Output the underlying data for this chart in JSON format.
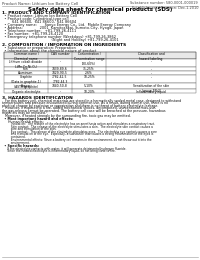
{
  "bg_color": "#ffffff",
  "header_left": "Product Name: Lithium Ion Battery Cell",
  "header_right": "Substance number: 580-0001-000019\nEstablishment / Revision: Dec.1.2010",
  "title": "Safety data sheet for chemical products (SDS)",
  "section1_title": "1. PRODUCT AND COMPANY IDENTIFICATION",
  "section1_lines": [
    "  • Product name: Lithium Ion Battery Cell",
    "  • Product code: Cylindrical-type cell",
    "         641 86600,  641 86600,  641 86604",
    "  • Company name:       Sanyo Energy Co., Ltd.  Mobile Energy Company",
    "  • Address:               2001  Kamitosakai, Sumoto-City, Hyogo, Japan",
    "  • Telephone number:   +81-799-26-4111",
    "  • Fax number:  +81-799-26-4120",
    "  • Emergency telephone number (Weekdays) +81-799-26-3862",
    "                                            (Night and Holiday) +81-799-26-4101"
  ],
  "section2_title": "2. COMPOSITION / INFORMATION ON INGREDIENTS",
  "section2_intro": "  • Substance or preparation: Preparation",
  "section2_table_header": "  • Information about the chemical nature of product",
  "table_col1": "Common name /\nChemical name",
  "table_col2": "CAS number",
  "table_col3": "Concentration /\nConcentration range\n(30-60%)",
  "table_col4": "Classification and\nhazard labeling",
  "table_rows": [
    [
      "Lithium cobalt dioxide\n(LiMn-Co-Ni-O₄)",
      "-",
      "-",
      "-"
    ],
    [
      "Iron",
      "7439-89-6",
      "35-25%",
      "-"
    ],
    [
      "Aluminum",
      "7429-90-5",
      "2-6%",
      "-"
    ],
    [
      "Graphite\n(Data in graphite-1)\n(ASTM graphite)",
      "7782-42-5\n7782-44-3",
      "10-25%",
      "-"
    ],
    [
      "Copper",
      "7440-50-8",
      "5-10%",
      "Sensitization of the skin\n(group 5N-2)"
    ],
    [
      "Organic electrolyte",
      "-",
      "10-20%",
      "Inflammatory liquid"
    ]
  ],
  "section3_title": "3. HAZARDS IDENTIFICATION",
  "section3_lines": [
    "   For this battery cell, chemical materials are stored in a hermetically sealed metal case, designed to withstand",
    "temperatures and pressure encountered during common use. As a result, during normal use, there is no",
    "physical change by explosion or vaporization and there is no threat of battery electrolyte leakage.",
    "   However, if exposed to a fire, added mechanical shocks, decomposed, unintentional miss-use,",
    "the gas release cannot be operated. The battery cell case will be breached at the pressure, hazardous",
    "materials may be released.",
    "   Moreover, if heated strongly by the surrounding fire, toxic gas may be emitted."
  ],
  "section3_hazard_header": "  • Most important hazard and effects:",
  "section3_human": "      Human health effects:",
  "section3_human_lines": [
    "          Inhalation:  The release of the electrolyte has an anesthesia action and stimulates a respiratory tract.",
    "          Skin contact:  The release of the electrolyte stimulates a skin.  The electrolyte skin contact causes a",
    "          sore and stimulation of the skin.",
    "          Eye contact:  The release of the electrolyte stimulates eyes.  The electrolyte eye contact causes a sore",
    "          and stimulation of the eye.  Especially, a substance that causes a strong inflammation of the eyes is",
    "          contained.",
    "",
    "          Environmental effects: Since a battery cell remains in the environment, do not throw out it into the",
    "          environment."
  ],
  "section3_specific_header": "  • Specific hazards:",
  "section3_specific_lines": [
    "      If the electrolyte contacts with water, it will generate detrimental hydrogen fluoride.",
    "      Since the heated electrolyte is inflammatory liquid, do not bring close to fire."
  ]
}
